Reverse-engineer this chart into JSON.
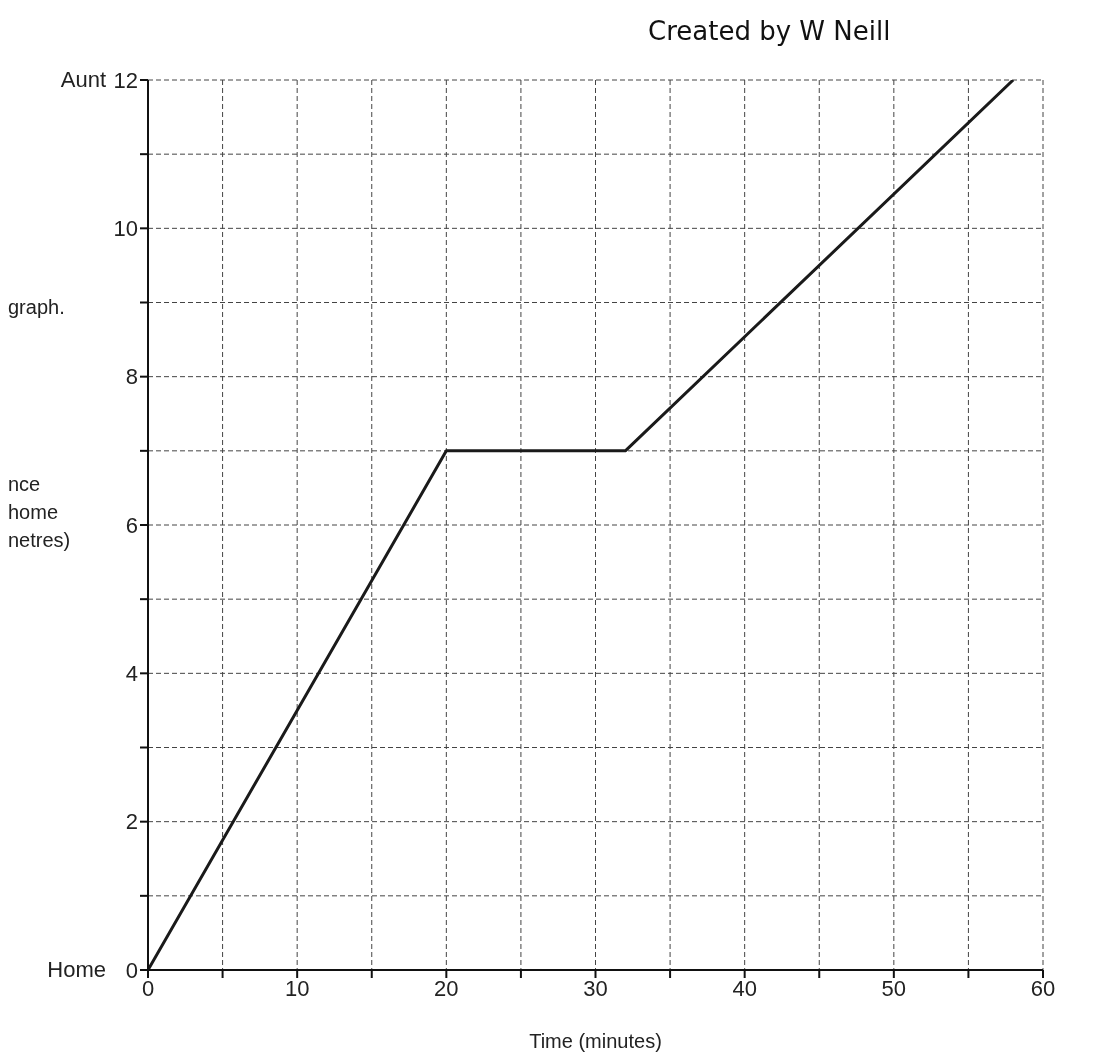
{
  "chart_data": {
    "type": "line",
    "xlabel": "Time (minutes)",
    "ylabel": "nce\nhome\nnetres)",
    "x": [
      0,
      20,
      32,
      58
    ],
    "values": [
      0,
      7,
      7,
      12
    ],
    "color": "#1a1a1a",
    "xlim": [
      0,
      60
    ],
    "ylim": [
      0,
      12
    ],
    "xticks": [
      0,
      {
        "value": 5,
        "label": null
      },
      10,
      {
        "value": 15,
        "label": null
      },
      20,
      {
        "value": 25,
        "label": null
      },
      30,
      {
        "value": 35,
        "label": null
      },
      40,
      {
        "value": 45,
        "label": null
      },
      50,
      {
        "value": 55,
        "label": null
      },
      60
    ],
    "yticks": [
      0,
      {
        "value": 1,
        "label": null
      },
      2,
      {
        "value": 3,
        "label": null
      },
      4,
      {
        "value": 5,
        "label": null
      },
      6,
      {
        "value": 7,
        "label": null
      },
      8,
      {
        "value": 9,
        "label": null
      },
      10,
      {
        "value": 11,
        "label": null
      },
      12
    ],
    "grid": true,
    "marker": "none",
    "line_style": "solid",
    "annotations": [
      "Created by W Neill",
      "graph.",
      "Home",
      "Aunt"
    ]
  }
}
